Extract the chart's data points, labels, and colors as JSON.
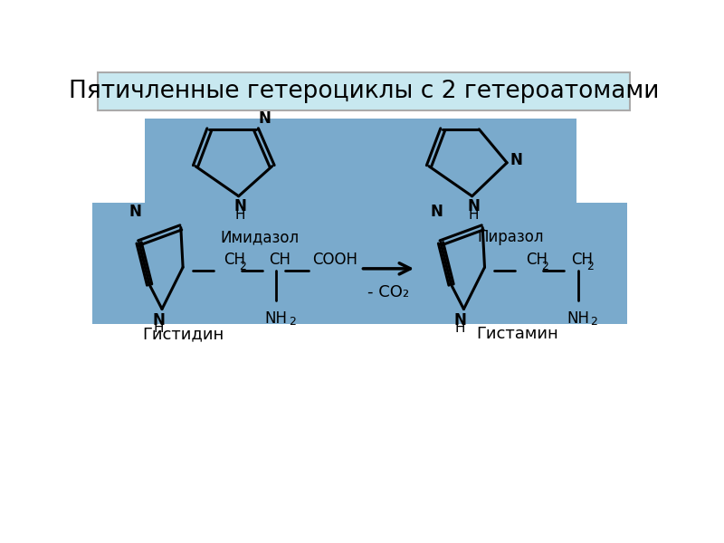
{
  "title": "Пятичленные гетероциклы с 2 гетероатомами",
  "title_bg": "#c8e8f0",
  "title_border": "#aaaaaa",
  "panel_top_bg": "#7aaacc",
  "panel_bottom_bg": "#7aaacc",
  "white_bg": "#ffffff",
  "label_imidazol": "Имидазол",
  "label_pirazol": "Пиразол",
  "label_gistidin": "Гистидин",
  "label_gistamin": "Гистамин",
  "arrow_label": "- CO₂",
  "lw": 2.0,
  "lw_ring": 2.2
}
